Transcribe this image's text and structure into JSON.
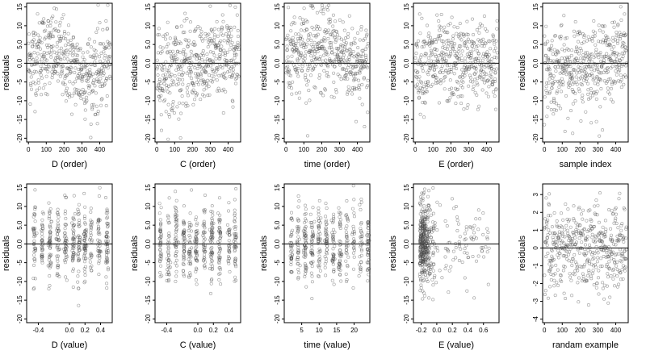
{
  "figure": {
    "panels": [
      {
        "id": "D-order",
        "xlabel": "D (order)",
        "ylabel": "residuals",
        "xlim": [
          -10,
          470
        ],
        "ylim": [
          -21,
          16
        ],
        "xticks": [
          0,
          100,
          200,
          300,
          400
        ],
        "yticks": [
          -20,
          -15,
          -10,
          -5,
          0,
          5,
          10,
          15
        ],
        "ytick_labels": [
          "-20",
          "-15",
          "-10",
          "-5",
          "0.0",
          "5.0",
          "10",
          "15"
        ],
        "xkind": "index",
        "pattern": "wave"
      },
      {
        "id": "C-order",
        "xlabel": "C (order)",
        "ylabel": "residuals",
        "xlim": [
          -10,
          470
        ],
        "ylim": [
          -21,
          16
        ],
        "xticks": [
          0,
          100,
          200,
          300,
          400
        ],
        "yticks": [
          -20,
          -15,
          -10,
          -5,
          0,
          5,
          10,
          15
        ],
        "ytick_labels": [
          "-20",
          "-15",
          "-10",
          "-5",
          "0.0",
          "5.0",
          "10",
          "15"
        ],
        "xkind": "index",
        "pattern": "rise"
      },
      {
        "id": "time-order",
        "xlabel": "time (order)",
        "ylabel": "residuals",
        "xlim": [
          -10,
          470
        ],
        "ylim": [
          -21,
          16
        ],
        "xticks": [
          0,
          100,
          200,
          300,
          400
        ],
        "yticks": [
          -20,
          -15,
          -10,
          -5,
          0,
          5,
          10,
          15
        ],
        "ytick_labels": [
          "-20",
          "-15",
          "-10",
          "-5",
          "0.0",
          "5.0",
          "10",
          "15"
        ],
        "xkind": "index",
        "pattern": "hump"
      },
      {
        "id": "E-order",
        "xlabel": "E (order)",
        "ylabel": "residuals",
        "xlim": [
          -10,
          470
        ],
        "ylim": [
          -21,
          16
        ],
        "xticks": [
          0,
          100,
          200,
          300,
          400
        ],
        "yticks": [
          -20,
          -15,
          -10,
          -5,
          0,
          5,
          10,
          15
        ],
        "ytick_labels": [
          "-20",
          "-15",
          "-10",
          "-5",
          "0.0",
          "5.0",
          "10",
          "15"
        ],
        "xkind": "index",
        "pattern": "flat"
      },
      {
        "id": "sample-index",
        "xlabel": "sample index",
        "ylabel": "residuals",
        "xlim": [
          -10,
          470
        ],
        "ylim": [
          -21,
          16
        ],
        "xticks": [
          0,
          100,
          200,
          300,
          400
        ],
        "yticks": [
          -20,
          -15,
          -10,
          -5,
          0,
          5,
          10,
          15
        ],
        "ytick_labels": [
          "-20",
          "-15",
          "-10",
          "-5",
          "0.0",
          "5.0",
          "10",
          "15"
        ],
        "xkind": "index",
        "pattern": "rise"
      },
      {
        "id": "D-value",
        "xlabel": "D (value)",
        "ylabel": "residuals",
        "xlim": [
          -0.55,
          0.55
        ],
        "ylim": [
          -21,
          16
        ],
        "xticks": [
          -0.4,
          0,
          0.2,
          0.4
        ],
        "xtick_labels": [
          "-0.4",
          "0.0",
          "0.2",
          "0.4"
        ],
        "yticks": [
          -20,
          -15,
          -10,
          -5,
          0,
          5,
          10,
          15
        ],
        "ytick_labels": [
          "-20",
          "-15",
          "-10",
          "-5",
          "0.0",
          "5.0",
          "10",
          "15"
        ],
        "xkind": "clusters",
        "xcenters": [
          -0.45,
          -0.35,
          -0.25,
          -0.15,
          -0.05,
          0.05,
          0.12,
          0.2,
          0.28,
          0.38,
          0.48
        ]
      },
      {
        "id": "C-value",
        "xlabel": "C (value)",
        "ylabel": "residuals",
        "xlim": [
          -0.55,
          0.55
        ],
        "ylim": [
          -21,
          16
        ],
        "xticks": [
          -0.4,
          0,
          0.2,
          0.4
        ],
        "xtick_labels": [
          "-0.4",
          "0.0",
          "0.2",
          "0.4"
        ],
        "yticks": [
          -20,
          -15,
          -10,
          -5,
          0,
          5,
          10,
          15
        ],
        "ytick_labels": [
          "-20",
          "-15",
          "-10",
          "-5",
          "0.0",
          "5.0",
          "10",
          "15"
        ],
        "xkind": "clusters",
        "xcenters": [
          -0.48,
          -0.38,
          -0.28,
          -0.18,
          -0.1,
          -0.02,
          0.08,
          0.18,
          0.28,
          0.4,
          0.48
        ]
      },
      {
        "id": "time-value",
        "xlabel": "time (value)",
        "ylabel": "residuals",
        "xlim": [
          0,
          24.5
        ],
        "ylim": [
          -21,
          16
        ],
        "xticks": [
          5,
          10,
          15,
          20
        ],
        "xtick_labels": [
          "5",
          "10",
          "15",
          "20"
        ],
        "yticks": [
          -20,
          -15,
          -10,
          -5,
          0,
          5,
          10,
          15
        ],
        "ytick_labels": [
          "-20",
          "-15",
          "-10",
          "-5",
          "0.0",
          "5.0",
          "10",
          "15"
        ],
        "xkind": "clusters",
        "xcenters": [
          2,
          4,
          6,
          8,
          10,
          12,
          14,
          16,
          18,
          20,
          22,
          24
        ]
      },
      {
        "id": "E-value",
        "xlabel": "E (value)",
        "ylabel": "residuals",
        "xlim": [
          -0.3,
          0.8
        ],
        "ylim": [
          -21,
          16
        ],
        "xticks": [
          -0.2,
          0,
          0.2,
          0.4,
          0.6
        ],
        "xtick_labels": [
          "-0.2",
          "0.0",
          "0.2",
          "0.4",
          "0.6"
        ],
        "yticks": [
          -20,
          -15,
          -10,
          -5,
          0,
          5,
          10,
          15
        ],
        "ytick_labels": [
          "-20",
          "-15",
          "-10",
          "-5",
          "0.0",
          "5.0",
          "10",
          "15"
        ],
        "xkind": "skew"
      },
      {
        "id": "random-example",
        "xlabel": "randam example",
        "ylabel": "residuals",
        "xlim": [
          -10,
          470
        ],
        "ylim": [
          -4.2,
          3.6
        ],
        "xticks": [
          0,
          100,
          200,
          300,
          400
        ],
        "yticks": [
          -4,
          -3,
          -2,
          -1,
          0,
          1,
          2,
          3
        ],
        "ytick_labels": [
          "-4",
          "-3",
          "-2",
          "-1",
          "0",
          "1",
          "2",
          "3"
        ],
        "xkind": "index",
        "pattern": "noise"
      }
    ]
  },
  "chart_data": {
    "type": "scatter",
    "n_points_per_panel": 460,
    "reference_line": {
      "y": 0
    },
    "grid": false,
    "legend": "none",
    "style": {
      "point_color": "#4a4a4a",
      "line_color": "#000000"
    },
    "note_values": "residuals scattered around 0; panels 1-9 range approx -20 to 15, panel 10 approx -4 to 3"
  }
}
